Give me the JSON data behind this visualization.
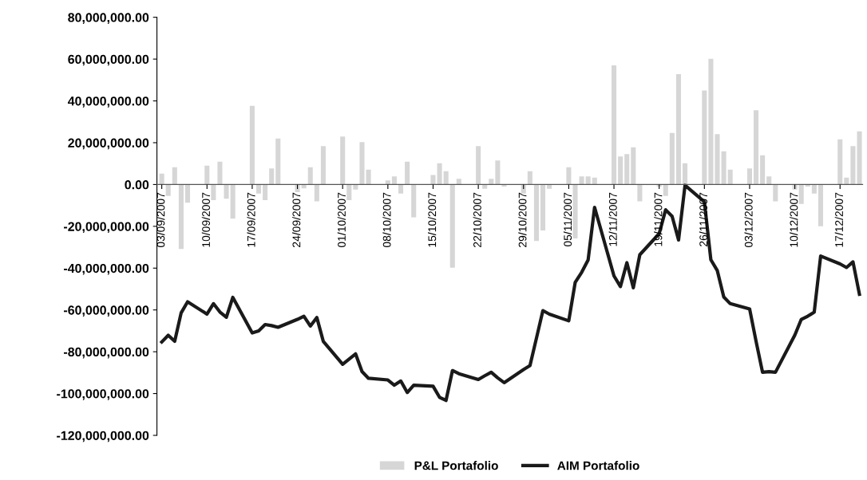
{
  "chart_data": {
    "type": "bar",
    "x": [
      "2007-09-03",
      "2007-09-04",
      "2007-09-05",
      "2007-09-06",
      "2007-09-07",
      "2007-09-10",
      "2007-09-11",
      "2007-09-12",
      "2007-09-13",
      "2007-09-14",
      "2007-09-17",
      "2007-09-18",
      "2007-09-19",
      "2007-09-20",
      "2007-09-21",
      "2007-09-24",
      "2007-09-25",
      "2007-09-26",
      "2007-09-27",
      "2007-09-28",
      "2007-10-01",
      "2007-10-02",
      "2007-10-03",
      "2007-10-04",
      "2007-10-05",
      "2007-10-08",
      "2007-10-09",
      "2007-10-10",
      "2007-10-11",
      "2007-10-12",
      "2007-10-15",
      "2007-10-16",
      "2007-10-17",
      "2007-10-18",
      "2007-10-19",
      "2007-10-22",
      "2007-10-23",
      "2007-10-24",
      "2007-10-25",
      "2007-10-26",
      "2007-10-29",
      "2007-10-30",
      "2007-10-31",
      "2007-11-01",
      "2007-11-02",
      "2007-11-05",
      "2007-11-06",
      "2007-11-07",
      "2007-11-08",
      "2007-11-09",
      "2007-11-12",
      "2007-11-13",
      "2007-11-14",
      "2007-11-15",
      "2007-11-16",
      "2007-11-19",
      "2007-11-20",
      "2007-11-21",
      "2007-11-22",
      "2007-11-23",
      "2007-11-26",
      "2007-11-27",
      "2007-11-28",
      "2007-11-29",
      "2007-11-30",
      "2007-12-03",
      "2007-12-04",
      "2007-12-05",
      "2007-12-06",
      "2007-12-07",
      "2007-12-10",
      "2007-12-11",
      "2007-12-12",
      "2007-12-13",
      "2007-12-14",
      "2007-12-17",
      "2007-12-18",
      "2007-12-19",
      "2007-12-20"
    ],
    "series": [
      {
        "name": "P&L Portafolio",
        "color": "#d6d6d6",
        "values": [
          5200000,
          -5500000,
          8300000,
          -30800000,
          -8700000,
          9000000,
          -7500000,
          10900000,
          -6800000,
          -16300000,
          37600000,
          -4300000,
          -7500000,
          7700000,
          22000000,
          -3700000,
          -1800000,
          8300000,
          -8000000,
          18400000,
          22900000,
          -7500000,
          -2400000,
          20300000,
          7100000,
          2000000,
          3900000,
          -4300000,
          10900000,
          -15700000,
          4500000,
          10200000,
          6400000,
          -39800000,
          2700000,
          18400000,
          -2000000,
          2700000,
          11500000,
          -1000000,
          -4300000,
          6400000,
          -27000000,
          -22000000,
          -2000000,
          8300000,
          -25800000,
          3900000,
          3900000,
          3300000,
          57000000,
          13400000,
          14600000,
          17800000,
          -8000000,
          -1000000,
          -5500000,
          24700000,
          52800000,
          10200000,
          45000000,
          60100000,
          24100000,
          15900000,
          7100000,
          7700000,
          35500000,
          14000000,
          3900000,
          -8000000,
          -2400000,
          -9300000,
          -1000000,
          -4300000,
          -20000000,
          21600000,
          3300000,
          18400000,
          25400000
        ]
      },
      {
        "name": "AIM Portafolio",
        "type": "line",
        "color": "#1a1a1a",
        "values": [
          -75300000,
          -72100000,
          -75000000,
          -61400000,
          -56100000,
          -62000000,
          -57000000,
          -61000000,
          -63500000,
          -54000000,
          -71000000,
          -70000000,
          -67000000,
          -67500000,
          -68300000,
          -64500000,
          -63000000,
          -67700000,
          -63600000,
          -75000000,
          -86000000,
          -83500000,
          -81000000,
          -89500000,
          -92700000,
          -93500000,
          -96000000,
          -94000000,
          -99500000,
          -96000000,
          -96500000,
          -101800000,
          -103300000,
          -89000000,
          -90500000,
          -93300000,
          -91500000,
          -89800000,
          -92500000,
          -94800000,
          -88500000,
          -86600000,
          -73500000,
          -60300000,
          -62000000,
          -65200000,
          -46800000,
          -42000000,
          -36100000,
          -10900000,
          -43700000,
          -48800000,
          -37400000,
          -49400000,
          -33600000,
          -23500000,
          -12100000,
          -15200000,
          -26500000,
          -400000,
          -8300000,
          -36000000,
          -41200000,
          -53800000,
          -57000000,
          -59500000,
          -75000000,
          -89800000,
          -89500000,
          -89800000,
          -72000000,
          -64500000,
          -63000000,
          -61100000,
          -34200000,
          -38000000,
          -39700000,
          -37000000,
          -52500000
        ]
      }
    ],
    "xlim": [
      "2007-09-02T06:00",
      "2007-12-20T12:00"
    ],
    "xticks": [
      {
        "value": "2007-09-03",
        "label": "03/09/2007"
      },
      {
        "value": "2007-09-10",
        "label": "10/09/2007"
      },
      {
        "value": "2007-09-17",
        "label": "17/09/2007"
      },
      {
        "value": "2007-09-24",
        "label": "24/09/2007"
      },
      {
        "value": "2007-10-01",
        "label": "01/10/2007"
      },
      {
        "value": "2007-10-08",
        "label": "08/10/2007"
      },
      {
        "value": "2007-10-15",
        "label": "15/10/2007"
      },
      {
        "value": "2007-10-22",
        "label": "22/10/2007"
      },
      {
        "value": "2007-10-29",
        "label": "29/10/2007"
      },
      {
        "value": "2007-11-05",
        "label": "05/11/2007"
      },
      {
        "value": "2007-11-12",
        "label": "12/11/2007"
      },
      {
        "value": "2007-11-19",
        "label": "19/11/2007"
      },
      {
        "value": "2007-11-26",
        "label": "26/11/2007"
      },
      {
        "value": "2007-12-03",
        "label": "03/12/2007"
      },
      {
        "value": "2007-12-10",
        "label": "10/12/2007"
      },
      {
        "value": "2007-12-17",
        "label": "17/12/2007"
      }
    ],
    "ylim": [
      -120000000,
      80000000
    ],
    "yticks": [
      {
        "value": -120000000,
        "label": "-120,000,000.00"
      },
      {
        "value": -100000000,
        "label": "-100,000,000.00"
      },
      {
        "value": -80000000,
        "label": "-80,000,000.00"
      },
      {
        "value": -60000000,
        "label": "-60,000,000.00"
      },
      {
        "value": -40000000,
        "label": "-40,000,000.00"
      },
      {
        "value": -20000000,
        "label": "-20,000,000.00"
      },
      {
        "value": 0,
        "label": "0.00"
      },
      {
        "value": 20000000,
        "label": "20,000,000.00"
      },
      {
        "value": 40000000,
        "label": "40,000,000.00"
      },
      {
        "value": 60000000,
        "label": "60,000,000.00"
      },
      {
        "value": 80000000,
        "label": "80,000,000.00"
      }
    ],
    "grid": false,
    "legend": "bottom"
  }
}
